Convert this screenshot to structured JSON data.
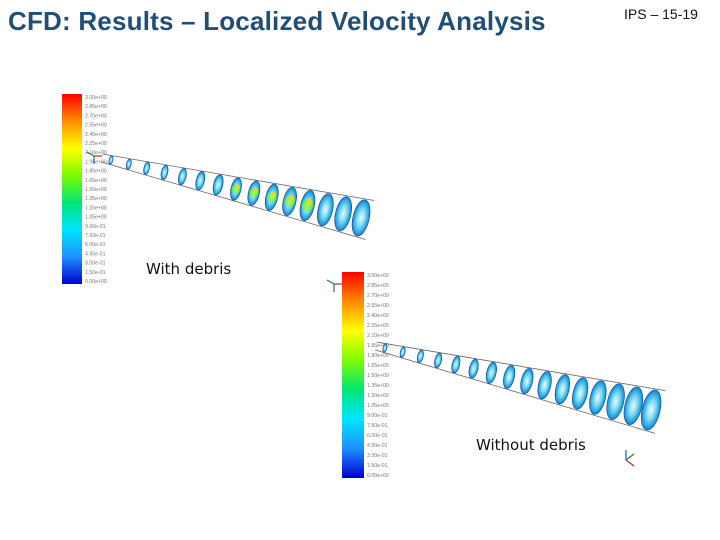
{
  "slide": {
    "title": "CFD: Results – Localized Velocity Analysis",
    "doc_id": "IPS – 15-19"
  },
  "figures": [
    {
      "label": "With debris",
      "colorbar_ticks": [
        "3.00e+00",
        "2.85e+00",
        "2.70e+00",
        "2.55e+00",
        "2.40e+00",
        "2.25e+00",
        "2.10e+00",
        "1.95e+00",
        "1.80e+00",
        "1.65e+00",
        "1.50e+00",
        "1.35e+00",
        "1.20e+00",
        "1.05e+00",
        "9.00e-01",
        "7.50e-01",
        "6.00e-01",
        "4.50e-01",
        "3.00e-01",
        "1.50e-01",
        "0.00e+00"
      ]
    },
    {
      "label": "Without debris",
      "colorbar_ticks": [
        "3.00e+00",
        "2.85e+00",
        "2.70e+00",
        "2.55e+00",
        "2.40e+00",
        "2.25e+00",
        "2.10e+00",
        "1.95e+00",
        "1.80e+00",
        "1.65e+00",
        "1.50e+00",
        "1.35e+00",
        "1.20e+00",
        "1.05e+00",
        "9.00e-01",
        "7.50e-01",
        "6.00e-01",
        "4.50e-01",
        "3.00e-01",
        "1.50e-01",
        "0.00e+00"
      ]
    }
  ],
  "colors": {
    "title": "#1f4e79",
    "colormap": [
      "#ff0000",
      "#ff8c00",
      "#ffff00",
      "#7cfc00",
      "#00e676",
      "#00e5ff",
      "#1e90ff",
      "#0000cd"
    ]
  }
}
